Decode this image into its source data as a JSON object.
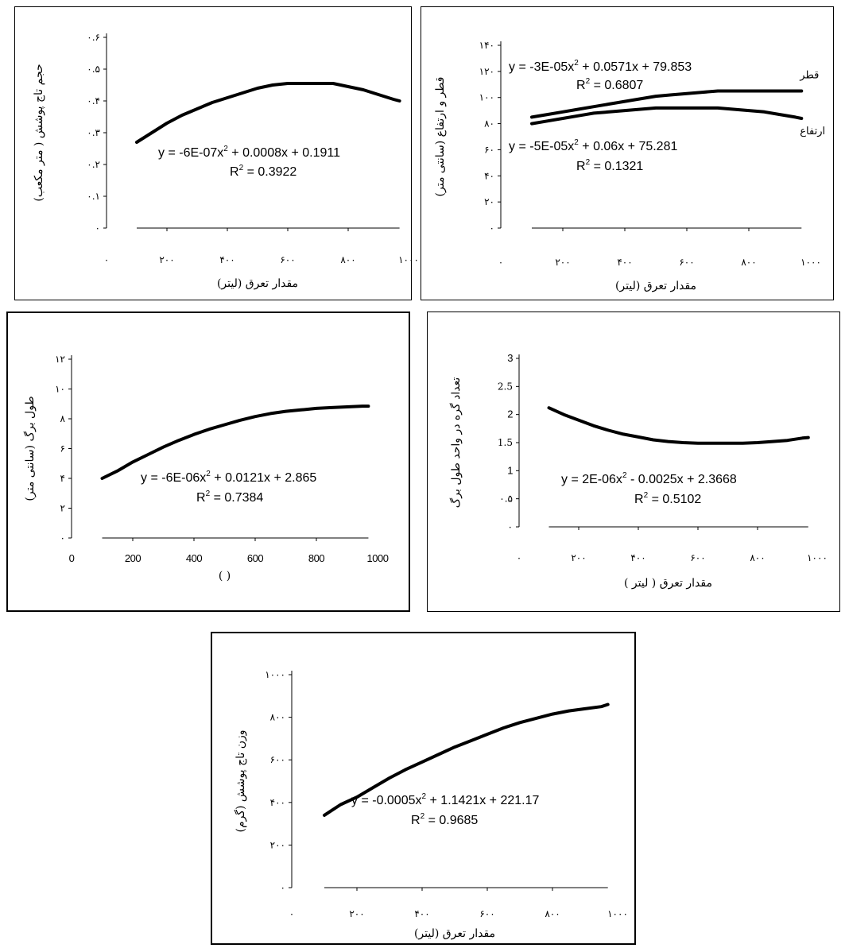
{
  "chart_data": [
    {
      "id": "crown-volume",
      "type": "line",
      "ylabel": "حجم تاج پوشش ( متر مکعب)",
      "xlabel": "مقدار تعرق (لیتر)",
      "x_ticks": [
        "۰",
        "۲۰۰",
        "۴۰۰",
        "۶۰۰",
        "۸۰۰",
        "۱۰۰۰"
      ],
      "y_ticks": [
        "۰",
        "۰.۱",
        "۰.۲",
        "۰.۳",
        "۰.۴",
        "۰.۵",
        "۰.۶"
      ],
      "xlim": [
        0,
        1000
      ],
      "ylim": [
        0,
        0.6
      ],
      "series": [
        {
          "x": [
            100,
            150,
            200,
            250,
            300,
            350,
            400,
            450,
            500,
            550,
            600,
            650,
            700,
            750,
            800,
            850,
            900,
            950,
            970
          ],
          "y": [
            0.27,
            0.3,
            0.33,
            0.355,
            0.375,
            0.395,
            0.41,
            0.425,
            0.44,
            0.45,
            0.455,
            0.455,
            0.455,
            0.455,
            0.445,
            0.435,
            0.42,
            0.405,
            0.4
          ]
        }
      ],
      "annotations": [
        {
          "kind": "equation",
          "base": "y = -6E-07x",
          "rest": " + 0.0008x + 0.1911"
        },
        {
          "kind": "r2",
          "value": " = 0.3922"
        }
      ]
    },
    {
      "id": "diameter-height",
      "type": "line",
      "ylabel": "قطر و ارتفاع (سانتی متر)",
      "xlabel": "مقدار تعرق (لیتر)",
      "x_ticks": [
        "۰",
        "۲۰۰",
        "۴۰۰",
        "۶۰۰",
        "۸۰۰",
        "۱۰۰۰"
      ],
      "y_ticks": [
        "۰",
        "۲۰",
        "۴۰",
        "۶۰",
        "۸۰",
        "۱۰۰",
        "۱۲۰",
        "۱۴۰"
      ],
      "xlim": [
        0,
        1000
      ],
      "ylim": [
        0,
        140
      ],
      "series": [
        {
          "name": "قطر",
          "x": [
            100,
            150,
            200,
            250,
            300,
            350,
            400,
            450,
            500,
            550,
            600,
            650,
            700,
            750,
            800,
            850,
            900,
            950,
            970
          ],
          "y": [
            85,
            87,
            89,
            91,
            93,
            95,
            97,
            99,
            101,
            102,
            103,
            104,
            105,
            105,
            105,
            105,
            105,
            105,
            105
          ]
        },
        {
          "name": "ارتفاع",
          "x": [
            100,
            150,
            200,
            250,
            300,
            350,
            400,
            450,
            500,
            550,
            600,
            650,
            700,
            750,
            800,
            850,
            900,
            950,
            970
          ],
          "y": [
            80,
            82,
            84,
            86,
            88,
            89,
            90,
            91,
            92,
            92,
            92,
            92,
            92,
            91,
            90,
            89,
            87,
            85,
            84
          ]
        }
      ],
      "annotations": [
        {
          "kind": "equation",
          "base": "y = -3E-05x",
          "rest": " + 0.0571x + 79.853"
        },
        {
          "kind": "r2",
          "value": " = 0.6807"
        },
        {
          "kind": "equation",
          "base": "y = -5E-05x",
          "rest": " + 0.06x + 75.281"
        },
        {
          "kind": "r2",
          "value": " = 0.1321"
        }
      ]
    },
    {
      "id": "leaf-length",
      "type": "line",
      "ylabel": "طول برگ (سانتی متر)",
      "xlabel": "( )",
      "x_ticks": [
        "0",
        "200",
        "400",
        "600",
        "800",
        "1000"
      ],
      "y_ticks": [
        "۰",
        "۲",
        "۴",
        "۶",
        "۸",
        "۱۰",
        "۱۲"
      ],
      "xlim": [
        0,
        1000
      ],
      "ylim": [
        0,
        12
      ],
      "series": [
        {
          "x": [
            100,
            150,
            200,
            250,
            300,
            350,
            400,
            450,
            500,
            550,
            600,
            650,
            700,
            750,
            800,
            850,
            900,
            950,
            970
          ],
          "y": [
            4.0,
            4.5,
            5.1,
            5.6,
            6.1,
            6.55,
            6.95,
            7.3,
            7.6,
            7.9,
            8.15,
            8.35,
            8.5,
            8.6,
            8.7,
            8.75,
            8.8,
            8.85,
            8.85
          ]
        }
      ],
      "annotations": [
        {
          "kind": "equation",
          "base": "y = -6E-06x",
          "rest": " + 0.0121x + 2.865"
        },
        {
          "kind": "r2",
          "value": " = 0.7384"
        }
      ]
    },
    {
      "id": "nodes-per-length",
      "type": "line",
      "ylabel": "تعداد گره در واحد طول برگ",
      "xlabel": "مقدار تعرق ( لیتر )",
      "x_ticks": [
        "۰",
        "۲۰۰",
        "۴۰۰",
        "۶۰۰",
        "۸۰۰",
        "۱۰۰۰"
      ],
      "y_ticks": [
        "۰",
        "۰.۵",
        "1",
        "1.5",
        "2",
        "2.5",
        "3"
      ],
      "xlim": [
        0,
        1000
      ],
      "ylim": [
        0,
        3
      ],
      "series": [
        {
          "x": [
            100,
            150,
            200,
            250,
            300,
            350,
            400,
            450,
            500,
            550,
            600,
            650,
            700,
            750,
            800,
            850,
            900,
            950,
            970
          ],
          "y": [
            2.12,
            2.0,
            1.9,
            1.8,
            1.72,
            1.65,
            1.6,
            1.55,
            1.52,
            1.5,
            1.49,
            1.49,
            1.49,
            1.49,
            1.5,
            1.52,
            1.54,
            1.58,
            1.59
          ]
        }
      ],
      "annotations": [
        {
          "kind": "equation",
          "base": "y = 2E-06x",
          "rest": " - 0.0025x + 2.3668"
        },
        {
          "kind": "r2",
          "value": " = 0.5102"
        }
      ]
    },
    {
      "id": "crown-weight",
      "type": "line",
      "ylabel": "وزن تاج پوشش (گرم)",
      "xlabel": "مقدار تعرق (لیتر)",
      "x_ticks": [
        "۰",
        "۲۰۰",
        "۴۰۰",
        "۶۰۰",
        "۸۰۰",
        "۱۰۰۰"
      ],
      "y_ticks": [
        "۰",
        "۲۰۰",
        "۴۰۰",
        "۶۰۰",
        "۸۰۰",
        "۱۰۰۰"
      ],
      "xlim": [
        0,
        1000
      ],
      "ylim": [
        0,
        1000
      ],
      "series": [
        {
          "x": [
            100,
            150,
            200,
            250,
            300,
            350,
            400,
            450,
            500,
            550,
            600,
            650,
            700,
            750,
            800,
            850,
            900,
            950,
            970
          ],
          "y": [
            340,
            390,
            425,
            470,
            515,
            555,
            590,
            625,
            660,
            690,
            720,
            750,
            775,
            795,
            815,
            830,
            840,
            850,
            860
          ]
        }
      ],
      "annotations": [
        {
          "kind": "equation",
          "base": "y = -0.0005x",
          "rest": " + 1.1421x + 221.17"
        },
        {
          "kind": "r2",
          "value": " = 0.9685"
        }
      ]
    }
  ],
  "labels": {
    "squared": "2",
    "r_symbol": "R"
  }
}
